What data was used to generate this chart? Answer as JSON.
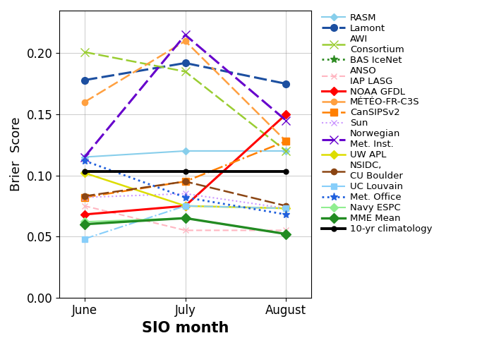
{
  "x_labels": [
    "June",
    "July",
    "August"
  ],
  "x_positions": [
    0,
    1,
    2
  ],
  "series": [
    {
      "name": "RASM",
      "values": [
        0.115,
        0.12,
        0.12
      ],
      "color": "#87CEEB",
      "linestyle": "-",
      "marker": "D",
      "markersize": 5,
      "linewidth": 1.5,
      "dashes": null
    },
    {
      "name": "Lamont",
      "values": [
        0.178,
        0.192,
        0.175
      ],
      "color": "#1c4fa0",
      "linestyle": "--",
      "marker": "o",
      "markersize": 7,
      "linewidth": 2.2,
      "dashes": [
        6,
        2
      ]
    },
    {
      "name": "AWI\nConsortium",
      "values": [
        0.201,
        0.185,
        0.12
      ],
      "color": "#9ACD32",
      "linestyle": "--",
      "marker": "x",
      "markersize": 8,
      "linewidth": 1.8,
      "dashes": [
        6,
        2
      ]
    },
    {
      "name": "BAS IceNet",
      "values": [
        null,
        null,
        null
      ],
      "color": "#2E8B22",
      "linestyle": ":",
      "marker": "*",
      "markersize": 8,
      "linewidth": 2.0,
      "dashes": null
    },
    {
      "name": "ANSO\nIAP LASG",
      "values": [
        0.075,
        0.055,
        0.055
      ],
      "color": "#FFB6C1",
      "linestyle": "--",
      "marker": "x",
      "markersize": 6,
      "linewidth": 1.5,
      "dashes": [
        4,
        2
      ]
    },
    {
      "name": "NOAA GFDL",
      "values": [
        0.068,
        0.075,
        0.15
      ],
      "color": "#FF0000",
      "linestyle": "-",
      "marker": "D",
      "markersize": 6,
      "linewidth": 2.2,
      "dashes": null
    },
    {
      "name": "MÉTÉO-FR-C3S",
      "values": [
        0.16,
        0.21,
        0.128
      ],
      "color": "#FFA040",
      "linestyle": "--",
      "marker": "o",
      "markersize": 6,
      "linewidth": 1.8,
      "dashes": [
        6,
        2
      ]
    },
    {
      "name": "CanSIPSv2",
      "values": [
        0.082,
        0.095,
        0.128
      ],
      "color": "#FF7F00",
      "linestyle": "-.",
      "marker": "s",
      "markersize": 7,
      "linewidth": 1.8,
      "dashes": null
    },
    {
      "name": "Sun",
      "values": [
        0.082,
        0.085,
        0.073
      ],
      "color": "#CC99FF",
      "linestyle": ":",
      "marker": "x",
      "markersize": 6,
      "linewidth": 1.5,
      "dashes": null
    },
    {
      "name": "Norwegian\nMet. Inst.",
      "values": [
        0.115,
        0.215,
        0.145
      ],
      "color": "#6600CC",
      "linestyle": "--",
      "marker": "x",
      "markersize": 8,
      "linewidth": 2.2,
      "dashes": [
        6,
        2
      ]
    },
    {
      "name": "UW APL",
      "values": [
        0.102,
        0.075,
        0.073
      ],
      "color": "#DDDD00",
      "linestyle": "-",
      "marker": "D",
      "markersize": 6,
      "linewidth": 1.8,
      "dashes": null
    },
    {
      "name": "NSIDC,\nCU Boulder",
      "values": [
        0.083,
        0.095,
        0.075
      ],
      "color": "#8B4513",
      "linestyle": "--",
      "marker": "o",
      "markersize": 6,
      "linewidth": 1.8,
      "dashes": [
        6,
        2
      ]
    },
    {
      "name": "UC Louvain",
      "values": [
        0.048,
        0.075,
        0.073
      ],
      "color": "#87CEFA",
      "linestyle": "-.",
      "marker": "s",
      "markersize": 6,
      "linewidth": 1.5,
      "dashes": null
    },
    {
      "name": "Met. Office",
      "values": [
        0.112,
        0.082,
        0.068
      ],
      "color": "#2060DD",
      "linestyle": ":",
      "marker": "*",
      "markersize": 8,
      "linewidth": 2.0,
      "dashes": null
    },
    {
      "name": "Navy ESPC",
      "values": [
        0.062,
        0.065,
        0.052
      ],
      "color": "#90EE90",
      "linestyle": "-",
      "marker": "D",
      "markersize": 6,
      "linewidth": 1.5,
      "dashes": null
    },
    {
      "name": "MME Mean",
      "values": [
        0.06,
        0.065,
        0.052
      ],
      "color": "#228B22",
      "linestyle": "-",
      "marker": "D",
      "markersize": 7,
      "linewidth": 2.4,
      "dashes": null
    },
    {
      "name": "10-yr climatology",
      "values": [
        0.103,
        0.103,
        0.103
      ],
      "color": "#000000",
      "linestyle": "-",
      "marker": "o",
      "markersize": 5,
      "linewidth": 2.8,
      "dashes": null
    }
  ],
  "ylabel": "Brier  Score",
  "xlabel": "SIO month",
  "ylim": [
    0.0,
    0.235
  ],
  "yticks": [
    0.0,
    0.05,
    0.1,
    0.15,
    0.2
  ],
  "ylabel_fontsize": 13,
  "xlabel_fontsize": 15,
  "tick_fontsize": 12,
  "legend_fontsize": 9.5,
  "figsize": [
    7.0,
    4.96
  ],
  "dpi": 100
}
